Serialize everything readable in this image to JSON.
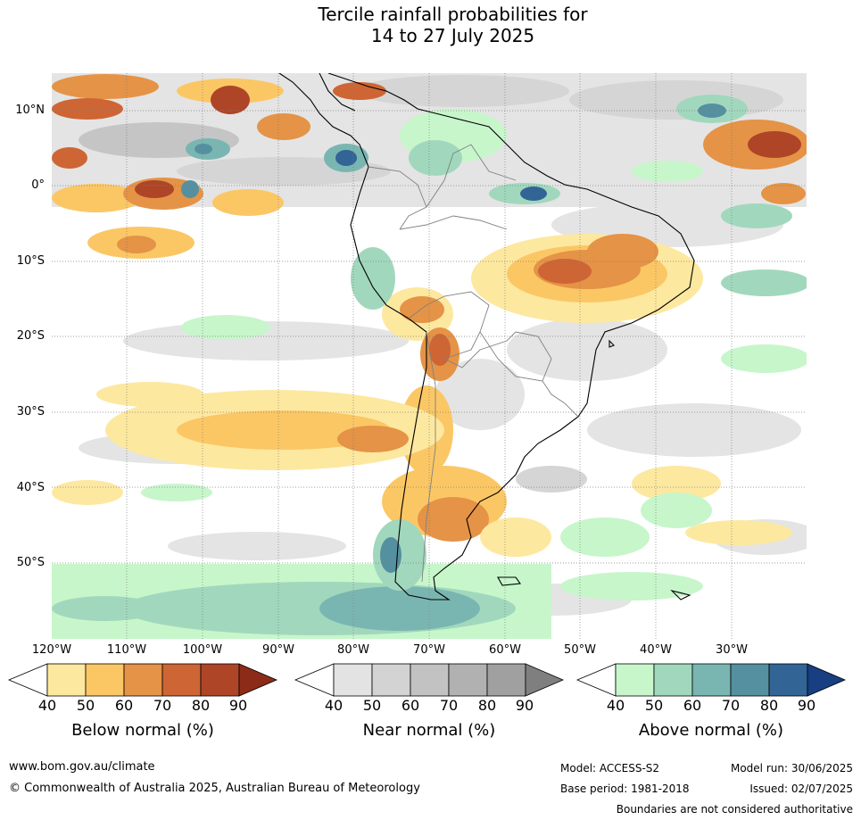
{
  "title_line1": "Tercile rainfall probabilities for",
  "title_line2": "14 to 27 July 2025",
  "lat_labels": [
    "10°N",
    "0°",
    "10°S",
    "20°S",
    "30°S",
    "40°S",
    "50°S"
  ],
  "lon_labels": [
    "120°W",
    "110°W",
    "100°W",
    "90°W",
    "80°W",
    "70°W",
    "60°W",
    "50°W",
    "40°W",
    "30°W"
  ],
  "legend": {
    "below": {
      "title": "Below normal (%)",
      "ticks": [
        "40",
        "50",
        "60",
        "70",
        "80",
        "90"
      ],
      "colors": [
        "#ffffff",
        "#fde8a0",
        "#fbc765",
        "#e59346",
        "#ce6534",
        "#ae4527",
        "#8c2b18"
      ]
    },
    "near": {
      "title": "Near normal (%)",
      "ticks": [
        "40",
        "50",
        "60",
        "70",
        "80",
        "90"
      ],
      "colors": [
        "#ffffff",
        "#e3e3e3",
        "#d3d3d3",
        "#c2c2c2",
        "#b1b1b1",
        "#a0a0a0",
        "#7f7f7f"
      ]
    },
    "above": {
      "title": "Above normal (%)",
      "ticks": [
        "40",
        "50",
        "60",
        "70",
        "80",
        "90"
      ],
      "colors": [
        "#ffffff",
        "#c7f6cb",
        "#a1d8bd",
        "#7ab6b1",
        "#5590a0",
        "#326496",
        "#173f82"
      ]
    }
  },
  "footer": {
    "website": "www.bom.gov.au/climate",
    "copyright": "© Commonwealth of Australia 2025, Australian Bureau of Meteorology",
    "model": "Model: ACCESS-S2",
    "base_period": "Base period: 1981-2018",
    "model_run": "Model run: 30/06/2025",
    "issued": "Issued: 02/07/2025",
    "disclaimer": "Boundaries are not considered authoritative"
  }
}
